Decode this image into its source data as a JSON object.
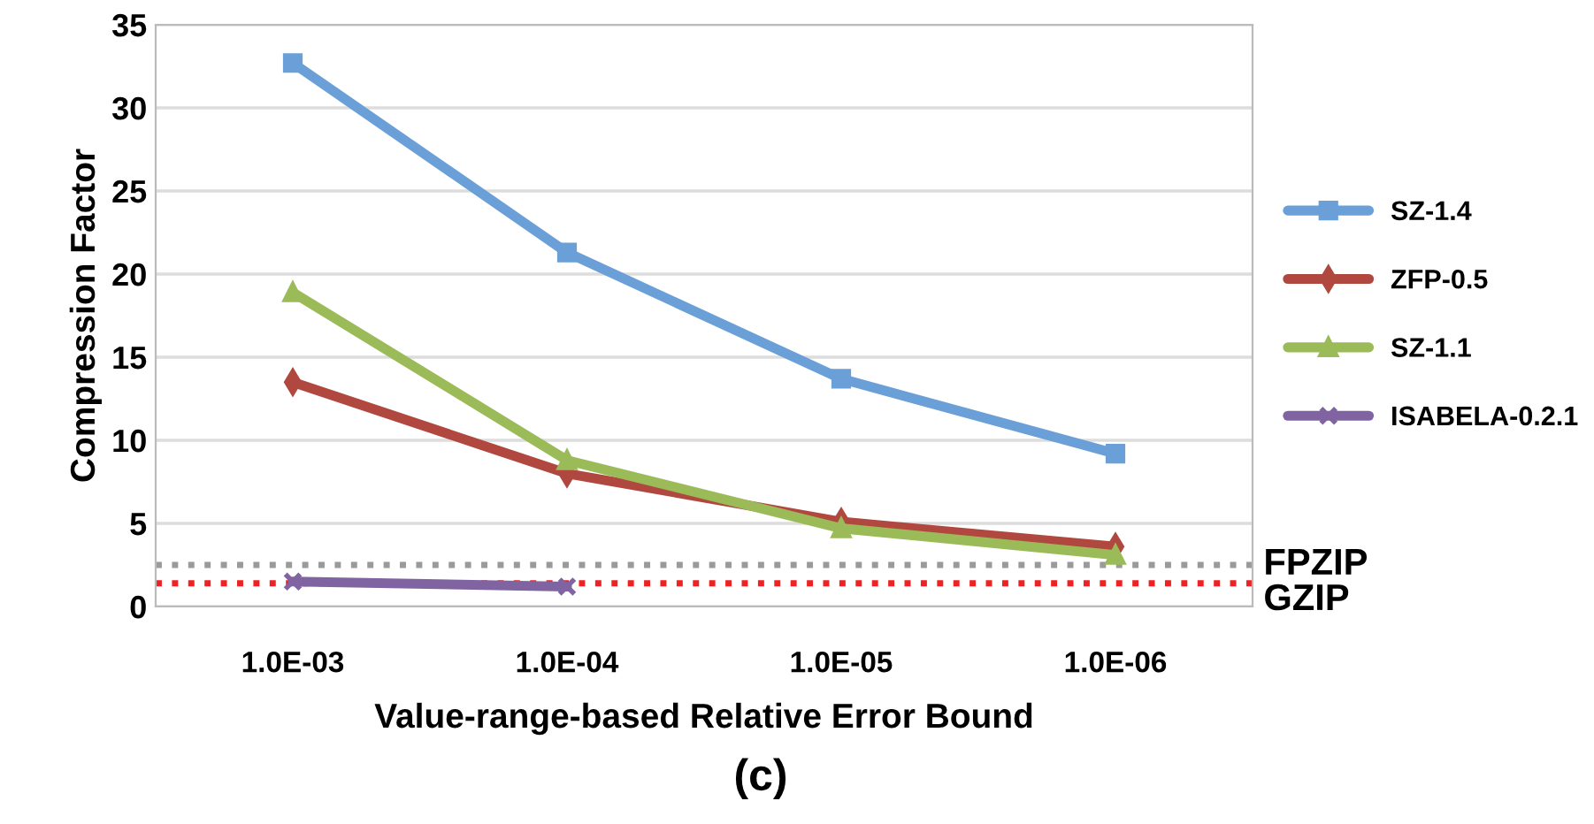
{
  "chart_data": {
    "type": "line",
    "xlabel": "Value-range-based Relative Error Bound",
    "ylabel": "Compression Factor",
    "categories": [
      "1.0E-03",
      "1.0E-04",
      "1.0E-05",
      "1.0E-06"
    ],
    "series": [
      {
        "name": "SZ-1.4",
        "color": "#6a9fd8",
        "marker": "square",
        "values": [
          32.7,
          21.3,
          13.7,
          9.2
        ]
      },
      {
        "name": "ZFP-0.5",
        "color": "#b0483f",
        "marker": "diamond",
        "values": [
          13.5,
          8.0,
          5.1,
          3.6
        ]
      },
      {
        "name": "SZ-1.1",
        "color": "#9bbb59",
        "marker": "triangle",
        "values": [
          18.9,
          8.8,
          4.7,
          3.1
        ]
      },
      {
        "name": "ISABELA-0.2.1",
        "color": "#8064a2",
        "marker": "cross",
        "values": [
          1.5,
          1.2,
          null,
          null
        ]
      }
    ],
    "ylim": [
      0,
      35
    ],
    "yticks": [
      0,
      5,
      10,
      15,
      20,
      25,
      30,
      35
    ],
    "grid": "y",
    "legend": "right",
    "line_style": "solid",
    "ref_lines": [
      {
        "axis": "y",
        "value": 2.5,
        "label": "FPZIP",
        "color": "#9a9a9a",
        "line_style": "dotted"
      },
      {
        "axis": "y",
        "value": 1.4,
        "label": "GZIP",
        "color": "#ee2222",
        "line_style": "dotted"
      }
    ],
    "annotations": [
      "(c)"
    ]
  }
}
